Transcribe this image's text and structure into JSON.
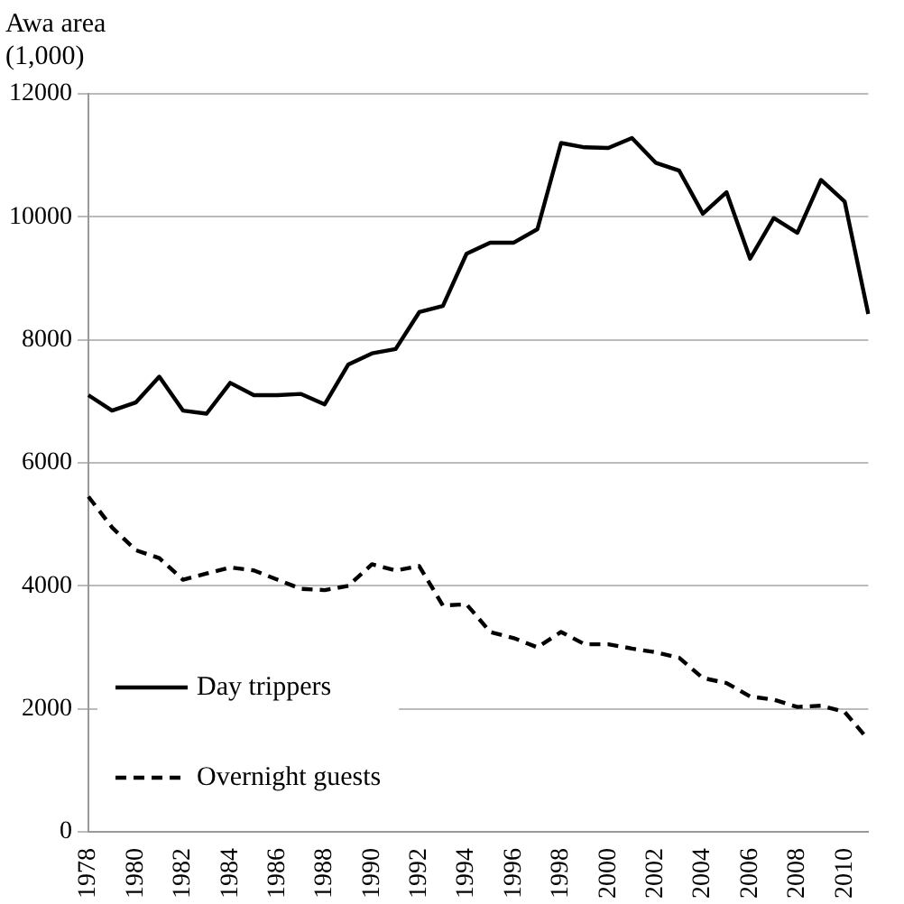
{
  "chart_data": {
    "type": "line",
    "ylabel": "Awa area\n(1,000)",
    "categories": [
      "1978",
      null,
      "1980",
      null,
      "1982",
      null,
      "1984",
      null,
      "1986",
      null,
      "1988",
      null,
      "1990",
      null,
      "1992",
      null,
      "1994",
      null,
      "1996",
      null,
      "1998",
      null,
      "2000",
      null,
      "2002",
      null,
      "2004",
      null,
      "2006",
      null,
      "2008",
      null,
      "2010",
      null
    ],
    "series": [
      {
        "name": "Day trippers",
        "color": "#000000",
        "line_style": "solid",
        "values": [
          7100,
          6850,
          6980,
          7400,
          6850,
          6800,
          7300,
          7100,
          7100,
          7120,
          6950,
          7600,
          7780,
          7850,
          8450,
          8550,
          9400,
          9580,
          9580,
          9800,
          11200,
          11130,
          11120,
          11280,
          10880,
          10750,
          10050,
          10400,
          9320,
          9980,
          9740,
          10600,
          10250,
          8420
        ]
      },
      {
        "name": "Overnight guests",
        "color": "#000000",
        "line_style": "dashed",
        "values": [
          5450,
          4950,
          4580,
          4450,
          4100,
          4200,
          4300,
          4250,
          4100,
          3950,
          3930,
          4000,
          4350,
          4250,
          4320,
          3680,
          3700,
          3250,
          3150,
          3000,
          3250,
          3050,
          3050,
          2980,
          2920,
          2830,
          2500,
          2420,
          2200,
          2150,
          2030,
          2050,
          1950,
          1500
        ]
      }
    ],
    "ylim": [
      0,
      12000
    ],
    "yticks": [
      0,
      2000,
      4000,
      6000,
      8000,
      10000,
      12000
    ],
    "grid": "y",
    "legend": "bottom left",
    "marker": "none"
  }
}
